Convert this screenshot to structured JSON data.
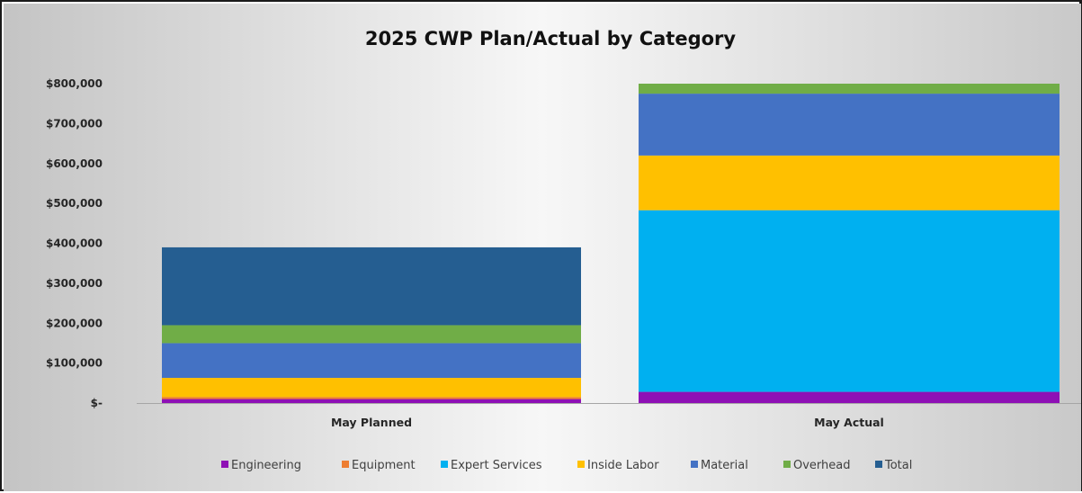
{
  "chart_data": {
    "type": "bar",
    "stacked": true,
    "title": "2025 CWP Plan/Actual by Category",
    "xlabel": "",
    "ylabel": "",
    "categories": [
      "May Planned",
      "May Actual"
    ],
    "y_ticks": [
      {
        "value": 0,
        "label": "$-"
      },
      {
        "value": 100000,
        "label": "$100,000"
      },
      {
        "value": 200000,
        "label": "$200,000"
      },
      {
        "value": 300000,
        "label": "$300,000"
      },
      {
        "value": 400000,
        "label": "$400,000"
      },
      {
        "value": 500000,
        "label": "$500,000"
      },
      {
        "value": 600000,
        "label": "$600,000"
      },
      {
        "value": 700000,
        "label": "$700,000"
      },
      {
        "value": 800000,
        "label": "$800,000"
      }
    ],
    "ylim": [
      0,
      800000
    ],
    "grid": false,
    "legend_position": "bottom",
    "series": [
      {
        "name": "Engineering",
        "color": "#8e10b5",
        "values": [
          10000,
          28000
        ]
      },
      {
        "name": "Equipment",
        "color": "#ed7d31",
        "values": [
          5000,
          0
        ]
      },
      {
        "name": "Expert Services",
        "color": "#00b0f0",
        "values": [
          0,
          455000
        ]
      },
      {
        "name": "Inside Labor",
        "color": "#ffc000",
        "values": [
          48000,
          137000
        ]
      },
      {
        "name": "Material",
        "color": "#4472c4",
        "values": [
          87000,
          155000
        ]
      },
      {
        "name": "Overhead",
        "color": "#70ad47",
        "values": [
          45000,
          25000
        ]
      },
      {
        "name": "Total",
        "color": "#255e91",
        "values": [
          195000,
          0
        ]
      }
    ]
  }
}
